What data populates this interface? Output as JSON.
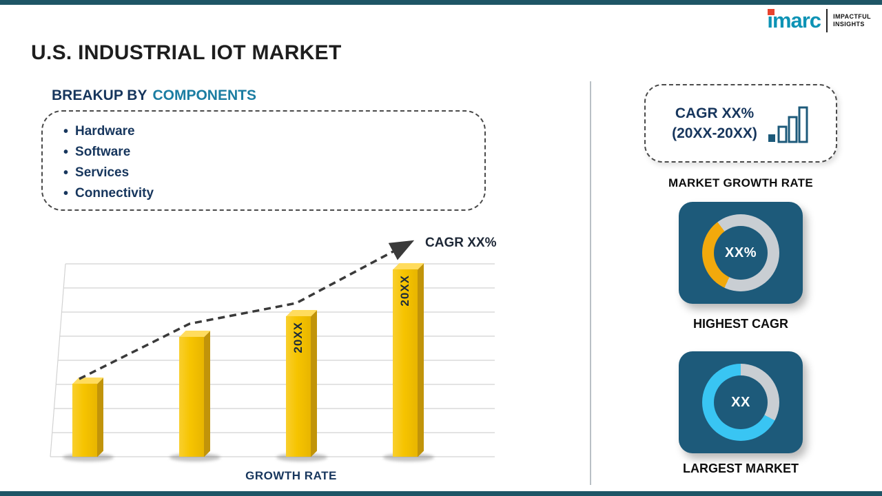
{
  "header": {
    "title": "U.S. INDUSTRIAL IOT MARKET"
  },
  "logo": {
    "brand": "imarc",
    "tagline_line1": "IMPACTFUL",
    "tagline_line2": "INSIGHTS"
  },
  "breakup": {
    "heading_prefix": "BREAKUP BY",
    "heading_highlight": "COMPONENTS",
    "items": [
      "Hardware",
      "Software",
      "Services",
      "Connectivity"
    ]
  },
  "chart_data": {
    "type": "bar",
    "title": "GROWTH RATE",
    "categories": [
      "20XX",
      "20XX",
      "20XX",
      "20XX"
    ],
    "values": [
      38,
      62,
      73,
      97
    ],
    "bar_labels": [
      "",
      "",
      "20XX",
      "20XX"
    ],
    "ylim": [
      0,
      100
    ],
    "xlabel": "GROWTH RATE",
    "ylabel": "",
    "grid": true,
    "legend": "none",
    "trend_annotation": "CAGR XX%"
  },
  "right_panel": {
    "cagr_box_line1": "CAGR XX%",
    "cagr_box_line2": "(20XX-20XX)",
    "market_growth_label": "MARKET GROWTH RATE",
    "highest_cagr": {
      "value": "XX%",
      "label": "HIGHEST CAGR"
    },
    "largest_market": {
      "value": "XX",
      "label": "LARGEST MARKET"
    }
  },
  "colors": {
    "navy": "#17365d",
    "accent": "#1b7da2",
    "bar-gold": "#f6c400",
    "bar-gold-dark": "#c1940a",
    "bar-gold-light": "#ffdc5e",
    "tile-bg": "#1d5a7a",
    "donut-gray": "#c9ced3",
    "donut-orange": "#f2a90c",
    "donut-cyan": "#39c5f3",
    "strip": "#1e5566",
    "logo-teal": "#0d93b5",
    "logo-red": "#e8432e",
    "grid-gray": "#d2d2d2",
    "trend-dark": "#3a3a3a"
  }
}
